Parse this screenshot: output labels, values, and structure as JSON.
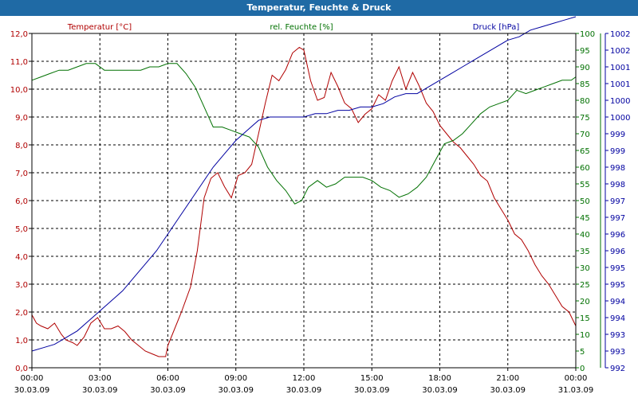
{
  "window": {
    "title": "Temperatur, Feuchte & Druck"
  },
  "colors": {
    "temperature": "#b00000",
    "humidity": "#007000",
    "pressure": "#0000a0",
    "titlebar": "#1f6aa5",
    "grid": "#000000"
  },
  "chart_data": {
    "type": "line",
    "title": "Temperatur, Feuchte & Druck",
    "x_ticks": [
      {
        "hours": 0,
        "time": "00:00",
        "date": "30.03.09"
      },
      {
        "hours": 3,
        "time": "03:00",
        "date": "30.03.09"
      },
      {
        "hours": 6,
        "time": "06:00",
        "date": "30.03.09"
      },
      {
        "hours": 9,
        "time": "09:00",
        "date": "30.03.09"
      },
      {
        "hours": 12,
        "time": "12:00",
        "date": "30.03.09"
      },
      {
        "hours": 15,
        "time": "15:00",
        "date": "30.03.09"
      },
      {
        "hours": 18,
        "time": "18:00",
        "date": "30.03.09"
      },
      {
        "hours": 21,
        "time": "21:00",
        "date": "30.03.09"
      },
      {
        "hours": 24,
        "time": "00:00",
        "date": "31.03.09"
      }
    ],
    "xlim": [
      0,
      24
    ],
    "grid": true,
    "axes": {
      "temperature": {
        "label": "Temperatur [°C]",
        "ylim": [
          0,
          12
        ],
        "ticks": [
          "0,0",
          "1,0",
          "2,0",
          "3,0",
          "4,0",
          "5,0",
          "6,0",
          "7,0",
          "8,0",
          "9,0",
          "10,0",
          "11,0",
          "12,0"
        ]
      },
      "humidity": {
        "label": "rel. Feuchte [%]",
        "ylim": [
          0,
          100
        ],
        "ticks": [
          "0",
          "5",
          "10",
          "15",
          "20",
          "25",
          "30",
          "35",
          "40",
          "45",
          "50",
          "55",
          "60",
          "65",
          "70",
          "75",
          "80",
          "85",
          "90",
          "95",
          "100"
        ]
      },
      "pressure": {
        "label": "Druck [hPa]",
        "ylim": [
          992,
          1002
        ],
        "ticks": [
          "992",
          "993",
          "993",
          "994",
          "994",
          "995",
          "995",
          "996",
          "996",
          "997",
          "997",
          "998",
          "998",
          "999",
          "999",
          "1000",
          "1000",
          "1001",
          "1001",
          "1002",
          "1002"
        ]
      }
    },
    "series": [
      {
        "name": "Temperatur [°C]",
        "axis": "temperature",
        "x": [
          0,
          0.2,
          0.4,
          0.7,
          1,
          1.3,
          1.5,
          1.8,
          2,
          2.3,
          2.6,
          2.9,
          3.2,
          3.5,
          3.8,
          4.1,
          4.4,
          4.7,
          5,
          5.3,
          5.6,
          5.9,
          6,
          6.3,
          6.6,
          7,
          7.3,
          7.6,
          7.9,
          8.2,
          8.5,
          8.8,
          9.1,
          9.4,
          9.7,
          10,
          10.3,
          10.6,
          10.9,
          11.2,
          11.5,
          11.8,
          12,
          12.3,
          12.6,
          12.9,
          13.2,
          13.5,
          13.8,
          14.1,
          14.4,
          14.7,
          15,
          15.3,
          15.6,
          15.9,
          16.2,
          16.5,
          16.8,
          17.1,
          17.4,
          17.7,
          18,
          18.3,
          18.6,
          18.9,
          19.2,
          19.5,
          19.8,
          20.1,
          20.4,
          20.7,
          21,
          21.3,
          21.6,
          21.9,
          22.2,
          22.5,
          22.8,
          23.1,
          23.4,
          23.7,
          24
        ],
        "values": [
          1.9,
          1.6,
          1.5,
          1.4,
          1.6,
          1.2,
          1,
          0.9,
          0.8,
          1.1,
          1.6,
          1.8,
          1.4,
          1.4,
          1.5,
          1.3,
          1,
          0.8,
          0.6,
          0.5,
          0.4,
          0.4,
          0.8,
          1.4,
          2,
          2.9,
          4.2,
          6.1,
          6.8,
          7,
          6.5,
          6.1,
          6.9,
          7,
          7.3,
          8.4,
          9.5,
          10.5,
          10.3,
          10.7,
          11.3,
          11.5,
          11.4,
          10.3,
          9.6,
          9.7,
          10.6,
          10.1,
          9.5,
          9.3,
          8.8,
          9.1,
          9.3,
          9.8,
          9.6,
          10.3,
          10.8,
          10,
          10.6,
          10.1,
          9.5,
          9.2,
          8.7,
          8.4,
          8.1,
          7.9,
          7.6,
          7.3,
          6.9,
          6.7,
          6.1,
          5.7,
          5.3,
          4.8,
          4.6,
          4.2,
          3.7,
          3.3,
          3,
          2.6,
          2.2,
          2,
          1.5
        ]
      },
      {
        "name": "rel. Feuchte [%]",
        "axis": "humidity",
        "x": [
          0,
          0.4,
          0.8,
          1.2,
          1.6,
          2,
          2.4,
          2.8,
          3.2,
          3.6,
          4,
          4.4,
          4.8,
          5.2,
          5.6,
          6,
          6.4,
          6.8,
          7.2,
          7.6,
          8,
          8.4,
          8.8,
          9.2,
          9.6,
          10,
          10.4,
          10.8,
          11.2,
          11.6,
          11.9,
          12.2,
          12.6,
          13,
          13.4,
          13.8,
          14.2,
          14.6,
          15,
          15.4,
          15.8,
          16.2,
          16.6,
          17,
          17.4,
          17.8,
          18.2,
          18.6,
          19,
          19.4,
          19.8,
          20.2,
          20.6,
          21,
          21.4,
          21.8,
          22.2,
          22.6,
          23,
          23.4,
          23.8,
          24
        ],
        "values": [
          86,
          87,
          88,
          89,
          89,
          90,
          91,
          91,
          89,
          89,
          89,
          89,
          89,
          90,
          90,
          91,
          91,
          88,
          84,
          78,
          72,
          72,
          71,
          70,
          69,
          66,
          60,
          56,
          53,
          49,
          50,
          54,
          56,
          54,
          55,
          57,
          57,
          57,
          56,
          54,
          53,
          51,
          52,
          54,
          57,
          62,
          67,
          68,
          70,
          73,
          76,
          78,
          79,
          80,
          83,
          82,
          83,
          84,
          85,
          86,
          86,
          87
        ]
      },
      {
        "name": "Druck [hPa]",
        "axis": "pressure",
        "x": [
          0,
          0.5,
          1,
          1.5,
          2,
          2.5,
          3,
          3.5,
          4,
          4.5,
          5,
          5.5,
          6,
          6.5,
          7,
          7.5,
          8,
          8.5,
          9,
          9.5,
          10,
          10.5,
          11,
          11.5,
          12,
          12.5,
          13,
          13.5,
          14,
          14.5,
          15,
          15.5,
          16,
          16.5,
          17,
          17.5,
          18,
          18.5,
          19,
          19.5,
          20,
          20.5,
          21,
          21.5,
          22,
          22.5,
          23,
          23.5,
          24
        ],
        "values": [
          992.5,
          992.6,
          992.7,
          992.9,
          993.1,
          993.4,
          993.7,
          994,
          994.3,
          994.7,
          995.1,
          995.5,
          996,
          996.5,
          997,
          997.5,
          998,
          998.4,
          998.8,
          999.1,
          999.4,
          999.5,
          999.5,
          999.5,
          999.5,
          999.6,
          999.6,
          999.7,
          999.7,
          999.8,
          999.8,
          999.9,
          1000.1,
          1000.2,
          1000.2,
          1000.4,
          1000.6,
          1000.8,
          1001,
          1001.2,
          1001.4,
          1001.6,
          1001.8,
          1001.9,
          1002.1,
          1002.2,
          1002.3,
          1002.4,
          1002.5
        ]
      }
    ]
  }
}
